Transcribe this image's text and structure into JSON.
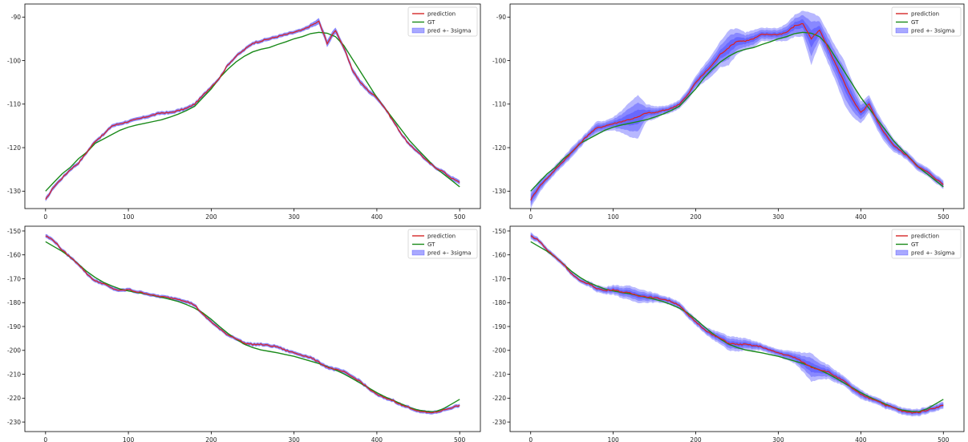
{
  "colors": {
    "prediction": "#d62728",
    "gt": "#1a8a1a",
    "band": "#2828ff",
    "axis": "#000000"
  },
  "chart_data": [
    {
      "type": "line",
      "title": "",
      "xlabel": "",
      "ylabel": "",
      "xlim": [
        -25,
        525
      ],
      "ylim": [
        -134,
        -87
      ],
      "x_ticks": [
        0,
        100,
        200,
        300,
        400,
        500
      ],
      "y_ticks": [
        -130,
        -120,
        -110,
        -100,
        -90
      ],
      "legend": {
        "position": "top-right",
        "entries": [
          "prediction",
          "GT",
          "pred +- 3sigma"
        ]
      },
      "sigma_style": "narrow",
      "x": [
        0,
        10,
        20,
        30,
        40,
        50,
        60,
        70,
        80,
        90,
        100,
        110,
        120,
        130,
        140,
        150,
        160,
        170,
        180,
        190,
        200,
        210,
        220,
        230,
        240,
        250,
        260,
        270,
        280,
        290,
        300,
        310,
        320,
        330,
        340,
        350,
        360,
        370,
        380,
        390,
        400,
        410,
        420,
        430,
        440,
        450,
        460,
        470,
        480,
        490,
        500
      ],
      "series": [
        {
          "name": "prediction",
          "values": [
            -132,
            -129,
            -127,
            -125,
            -123.5,
            -121,
            -118.5,
            -117,
            -115,
            -114.5,
            -114,
            -113.5,
            -113,
            -112.5,
            -112,
            -112,
            -111.5,
            -111,
            -110,
            -108,
            -106,
            -104,
            -101,
            -99,
            -97.5,
            -96,
            -95.5,
            -95,
            -94.5,
            -94,
            -93.5,
            -93,
            -92,
            -91,
            -96,
            -93,
            -97,
            -102,
            -105,
            -107,
            -108.5,
            -111,
            -114,
            -117,
            -119.5,
            -121,
            -123,
            -124.5,
            -125.5,
            -127,
            -128
          ]
        },
        {
          "name": "GT",
          "values": [
            -130,
            -128,
            -126,
            -124.5,
            -122.5,
            -121,
            -119,
            -118,
            -117,
            -116,
            -115.3,
            -114.8,
            -114.4,
            -114,
            -113.6,
            -113,
            -112.3,
            -111.5,
            -110.5,
            -108.5,
            -106.5,
            -104,
            -102,
            -100.3,
            -99,
            -98,
            -97.4,
            -97,
            -96.3,
            -95.7,
            -95,
            -94.5,
            -93.8,
            -93.5,
            -93.7,
            -94.5,
            -96.5,
            -99.5,
            -102.5,
            -105.5,
            -108.5,
            -111,
            -113.5,
            -116,
            -118.5,
            -120.5,
            -122.5,
            -124.5,
            -126,
            -127.5,
            -129
          ]
        }
      ],
      "sigma": [
        0.5,
        0.5,
        0.4,
        0.4,
        0.4,
        0.4,
        0.4,
        0.4,
        0.4,
        0.4,
        0.4,
        0.4,
        0.4,
        0.4,
        0.4,
        0.4,
        0.4,
        0.4,
        0.4,
        0.4,
        0.4,
        0.4,
        0.4,
        0.4,
        0.4,
        0.4,
        0.4,
        0.4,
        0.4,
        0.4,
        0.4,
        0.4,
        0.5,
        0.7,
        0.8,
        0.7,
        0.6,
        0.6,
        0.6,
        0.5,
        0.5,
        0.4,
        0.4,
        0.4,
        0.4,
        0.4,
        0.4,
        0.4,
        0.4,
        0.5,
        0.5
      ]
    },
    {
      "type": "line",
      "title": "",
      "xlabel": "",
      "ylabel": "",
      "xlim": [
        -25,
        525
      ],
      "ylim": [
        -134,
        -87
      ],
      "x_ticks": [
        0,
        100,
        200,
        300,
        400,
        500
      ],
      "y_ticks": [
        -130,
        -120,
        -110,
        -100,
        -90
      ],
      "legend": {
        "position": "top-right",
        "entries": [
          "prediction",
          "GT",
          "pred +- 3sigma"
        ]
      },
      "sigma_style": "wide",
      "x": [
        0,
        10,
        20,
        30,
        40,
        50,
        60,
        70,
        80,
        90,
        100,
        110,
        120,
        130,
        140,
        150,
        160,
        170,
        180,
        190,
        200,
        210,
        220,
        230,
        240,
        250,
        260,
        270,
        280,
        290,
        300,
        310,
        320,
        330,
        340,
        350,
        360,
        370,
        380,
        390,
        400,
        410,
        420,
        430,
        440,
        450,
        460,
        470,
        480,
        490,
        500
      ],
      "series": [
        {
          "name": "prediction",
          "values": [
            -132,
            -129,
            -127,
            -125,
            -123,
            -121,
            -119,
            -117,
            -115.5,
            -115,
            -114.5,
            -114,
            -113.5,
            -113,
            -112,
            -112,
            -111.5,
            -111,
            -110,
            -108,
            -105,
            -103,
            -101,
            -98.5,
            -97,
            -95.5,
            -95.5,
            -95,
            -94,
            -94,
            -94,
            -93.5,
            -92,
            -91.5,
            -95,
            -93,
            -97,
            -101,
            -105,
            -109,
            -112,
            -110,
            -114,
            -117,
            -119.5,
            -121,
            -122.5,
            -124.5,
            -125.5,
            -127,
            -128.5
          ]
        },
        {
          "name": "GT",
          "values": [
            -130,
            -128,
            -126,
            -124.5,
            -122.5,
            -121,
            -119,
            -118,
            -117,
            -116,
            -115.3,
            -114.8,
            -114.4,
            -114,
            -113.6,
            -113,
            -112.3,
            -111.5,
            -110.5,
            -108.5,
            -106.5,
            -104,
            -102,
            -100.3,
            -99,
            -98,
            -97.4,
            -97,
            -96.3,
            -95.7,
            -95,
            -94.5,
            -93.8,
            -93.5,
            -93.7,
            -94.5,
            -96.5,
            -99.5,
            -102.5,
            -105.5,
            -108.5,
            -111,
            -113.5,
            -116,
            -118.5,
            -120.5,
            -122.5,
            -124.5,
            -126,
            -127.5,
            -129
          ]
        }
      ],
      "sigma": [
        2,
        1.5,
        1,
        1,
        1,
        1.2,
        1,
        1,
        1.5,
        1.2,
        1.5,
        2.5,
        4,
        5,
        2,
        1.5,
        1,
        1,
        1,
        1.2,
        1.5,
        2,
        2.5,
        3,
        4,
        3,
        2,
        2,
        1.5,
        1.5,
        1.5,
        2,
        2.5,
        3,
        6,
        3,
        3.5,
        4,
        5,
        4,
        2.5,
        2,
        2,
        2,
        1.5,
        1,
        1,
        1,
        1,
        1,
        1
      ]
    },
    {
      "type": "line",
      "title": "",
      "xlabel": "",
      "ylabel": "",
      "xlim": [
        -25,
        525
      ],
      "ylim": [
        -234,
        -148
      ],
      "x_ticks": [
        0,
        100,
        200,
        300,
        400,
        500
      ],
      "y_ticks": [
        -230,
        -220,
        -210,
        -200,
        -190,
        -180,
        -170,
        -160,
        -150
      ],
      "legend": {
        "position": "top-right",
        "entries": [
          "prediction",
          "GT",
          "pred +- 3sigma"
        ]
      },
      "sigma_style": "narrow",
      "x": [
        0,
        10,
        20,
        30,
        40,
        50,
        60,
        70,
        80,
        90,
        100,
        110,
        120,
        130,
        140,
        150,
        160,
        170,
        180,
        190,
        200,
        210,
        220,
        230,
        240,
        250,
        260,
        270,
        280,
        290,
        300,
        310,
        320,
        330,
        340,
        350,
        360,
        370,
        380,
        390,
        400,
        410,
        420,
        430,
        440,
        450,
        460,
        470,
        480,
        490,
        500
      ],
      "series": [
        {
          "name": "prediction",
          "values": [
            -152,
            -154,
            -158,
            -161,
            -164,
            -168,
            -171,
            -172,
            -174,
            -175,
            -174.5,
            -175.5,
            -176,
            -177,
            -177.5,
            -178,
            -178.5,
            -179.5,
            -181,
            -185,
            -188,
            -191,
            -193.5,
            -195,
            -197,
            -197.5,
            -197.5,
            -198,
            -198.5,
            -200,
            -201,
            -202,
            -203,
            -205,
            -207,
            -208,
            -209,
            -211,
            -213,
            -216,
            -218.5,
            -220,
            -221,
            -223,
            -224,
            -225.5,
            -226,
            -226,
            -225,
            -224,
            -223
          ]
        },
        {
          "name": "GT",
          "values": [
            -154.5,
            -156.5,
            -158.5,
            -161,
            -164,
            -167,
            -169.5,
            -171.5,
            -173,
            -174.3,
            -175.1,
            -175.7,
            -176.3,
            -177,
            -177.8,
            -178.6,
            -179.5,
            -180.8,
            -182.3,
            -184.3,
            -187,
            -190,
            -192.8,
            -195.3,
            -197.4,
            -198.8,
            -199.8,
            -200.4,
            -201,
            -201.8,
            -202.5,
            -203.5,
            -204.5,
            -205.5,
            -206.8,
            -208.2,
            -209.8,
            -211.7,
            -213.7,
            -215.7,
            -217.7,
            -219.5,
            -221,
            -222.5,
            -224,
            -225,
            -225.5,
            -225.7,
            -224.5,
            -222.5,
            -220.5
          ]
        }
      ],
      "sigma": [
        0.8,
        0.8,
        0.7,
        0.7,
        0.7,
        0.7,
        0.7,
        0.7,
        0.7,
        0.7,
        0.7,
        0.7,
        0.7,
        0.7,
        0.7,
        0.7,
        0.7,
        0.7,
        0.7,
        0.7,
        0.7,
        0.7,
        0.7,
        0.7,
        0.7,
        0.7,
        0.7,
        0.7,
        0.7,
        0.7,
        0.7,
        0.7,
        0.7,
        0.8,
        0.8,
        0.8,
        0.8,
        0.8,
        0.8,
        0.7,
        0.7,
        0.7,
        0.7,
        0.7,
        0.7,
        0.7,
        0.7,
        0.7,
        0.7,
        0.7,
        0.7
      ]
    },
    {
      "type": "line",
      "title": "",
      "xlabel": "",
      "ylabel": "",
      "xlim": [
        -25,
        525
      ],
      "ylim": [
        -234,
        -148
      ],
      "x_ticks": [
        0,
        100,
        200,
        300,
        400,
        500
      ],
      "y_ticks": [
        -230,
        -220,
        -210,
        -200,
        -190,
        -180,
        -170,
        -160,
        -150
      ],
      "legend": {
        "position": "top-right",
        "entries": [
          "prediction",
          "GT",
          "pred +- 3sigma"
        ]
      },
      "sigma_style": "wide",
      "x": [
        0,
        10,
        20,
        30,
        40,
        50,
        60,
        70,
        80,
        90,
        100,
        110,
        120,
        130,
        140,
        150,
        160,
        170,
        180,
        190,
        200,
        210,
        220,
        230,
        240,
        250,
        260,
        270,
        280,
        290,
        300,
        310,
        320,
        330,
        340,
        350,
        360,
        370,
        380,
        390,
        400,
        410,
        420,
        430,
        440,
        450,
        460,
        470,
        480,
        490,
        500
      ],
      "series": [
        {
          "name": "prediction",
          "values": [
            -152,
            -154,
            -158,
            -161,
            -164,
            -168,
            -171,
            -172,
            -174,
            -175,
            -174.5,
            -175.5,
            -176,
            -177,
            -177.5,
            -178,
            -178.5,
            -179.5,
            -181,
            -185,
            -188,
            -191,
            -193.5,
            -195,
            -197,
            -197.5,
            -197.5,
            -198,
            -198.5,
            -200,
            -201,
            -202,
            -203,
            -205,
            -207,
            -208,
            -209,
            -211,
            -213,
            -216,
            -218.5,
            -220,
            -221,
            -223,
            -224,
            -225.5,
            -226,
            -226,
            -225,
            -224,
            -223
          ]
        },
        {
          "name": "GT",
          "values": [
            -154.5,
            -156.5,
            -158.5,
            -161,
            -164,
            -167,
            -169.5,
            -171.5,
            -173,
            -174.3,
            -175.1,
            -175.7,
            -176.3,
            -177,
            -177.8,
            -178.6,
            -179.5,
            -180.8,
            -182.3,
            -184.3,
            -187,
            -190,
            -192.8,
            -195.3,
            -197.4,
            -198.8,
            -199.8,
            -200.4,
            -201,
            -201.8,
            -202.5,
            -203.5,
            -204.5,
            -205.5,
            -206.8,
            -208.2,
            -209.8,
            -211.7,
            -213.7,
            -215.7,
            -217.7,
            -219.5,
            -221,
            -222.5,
            -224,
            -225,
            -225.5,
            -225.7,
            -224.5,
            -222.5,
            -220.5
          ]
        }
      ],
      "sigma": [
        1.5,
        1,
        1,
        1,
        1,
        1,
        1,
        1.2,
        1.5,
        1.5,
        2,
        2.5,
        3,
        3,
        2.5,
        2,
        1.5,
        1.5,
        1.5,
        1.5,
        1.5,
        1.5,
        2,
        2.5,
        3,
        3,
        2.5,
        2,
        1.5,
        1.5,
        1.5,
        2,
        2.5,
        4,
        6,
        4,
        3,
        2.5,
        2,
        2,
        2,
        1.5,
        1.5,
        1.5,
        1.5,
        1.5,
        1.5,
        1.5,
        1.5,
        1.5,
        1.5
      ]
    }
  ]
}
